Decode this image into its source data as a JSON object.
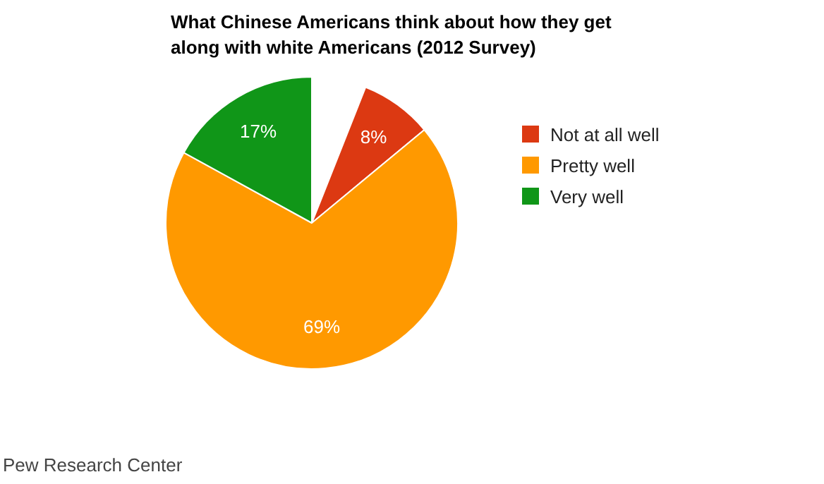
{
  "chart_data": {
    "type": "pie",
    "title": "What Chinese Americans think about how they get along with white Americans (2012 Survey)",
    "categories": [
      "Not at all well",
      "Pretty well",
      "Very well"
    ],
    "values": [
      8,
      69,
      17
    ],
    "colors": [
      "#dc3912",
      "#ff9900",
      "#109618"
    ],
    "value_labels": [
      "8%",
      "69%",
      "17%"
    ],
    "legend": "right",
    "annotations": [
      "Pew Research Center"
    ]
  }
}
